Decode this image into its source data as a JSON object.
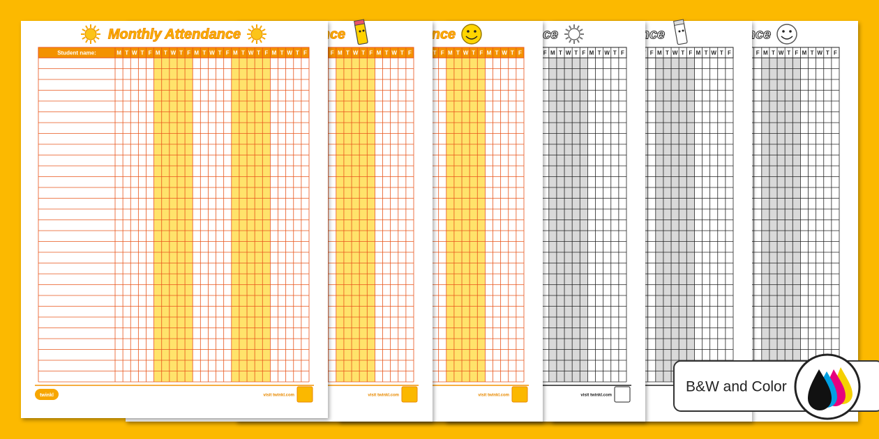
{
  "title": "Monthly Attendance",
  "student_label": "Student name:",
  "days": [
    "M",
    "T",
    "W",
    "T",
    "F"
  ],
  "brand": "twinkl",
  "footer": "visit twinkl.com",
  "badge": "B&W and Color"
}
